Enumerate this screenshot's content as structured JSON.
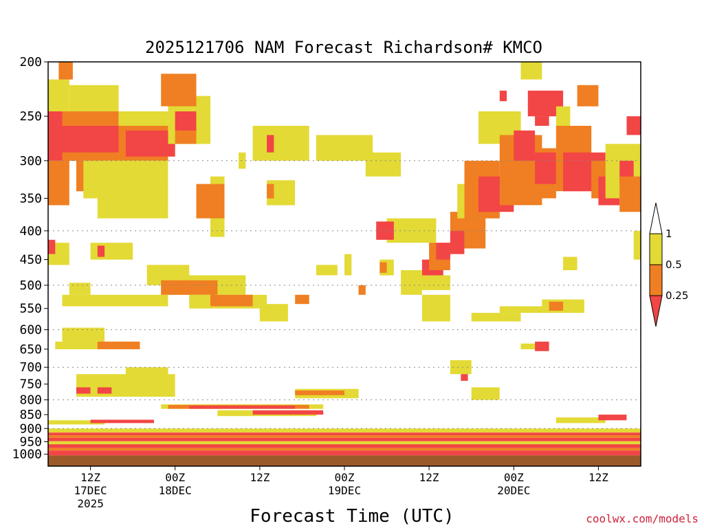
{
  "chart_data": {
    "type": "heatmap",
    "title": "2025121706 NAM Forecast Richardson# KMCO",
    "xlabel": "Forecast Time (UTC)",
    "ylabel": "",
    "credit": "coolwx.com/models",
    "y_axis": {
      "scale": "log",
      "reversed": true,
      "range": [
        200,
        1050
      ],
      "ticks": [
        200,
        250,
        300,
        350,
        400,
        450,
        500,
        550,
        600,
        650,
        700,
        750,
        800,
        850,
        900,
        950,
        1000
      ],
      "tick_labels": [
        "200",
        "250",
        "300",
        "350",
        "400",
        "450",
        "500",
        "550",
        "600",
        "650",
        "700",
        "750",
        "800",
        "850",
        "900",
        "950",
        "1000"
      ],
      "gridlines_at": [
        300,
        400,
        500,
        600,
        700,
        800,
        900
      ]
    },
    "x_axis": {
      "range_hours": [
        6,
        90
      ],
      "ticks_hours": [
        12,
        24,
        36,
        48,
        60,
        72,
        84
      ],
      "tick_labels": [
        [
          "12Z",
          "17DEC",
          "2025"
        ],
        [
          "00Z",
          "18DEC"
        ],
        [
          "12Z"
        ],
        [
          "00Z",
          "19DEC"
        ],
        [
          "12Z"
        ],
        [
          "00Z",
          "20DEC"
        ],
        [
          "12Z"
        ]
      ]
    },
    "legend": {
      "placement": "right",
      "labels": [
        "1",
        "0.5",
        "0.25"
      ],
      "colors": {
        "above": "#ffffff",
        "mid_high": "#e3da35",
        "mid_low": "#ef7f22",
        "low": "#f24545"
      }
    },
    "categories": {
      "yellow": "0.5-1",
      "orange": "0.25-0.5",
      "red": "<0.25"
    },
    "colors": {
      "yellow": "#e3da35",
      "orange": "#ef7f22",
      "red": "#f24545",
      "ground": "#9b5a2a"
    },
    "regions": [
      {
        "v": "yellow",
        "t": [
          6,
          9
        ],
        "p": [
          215,
          300
        ]
      },
      {
        "v": "orange",
        "t": [
          7.5,
          9.5
        ],
        "p": [
          200,
          215
        ]
      },
      {
        "v": "orange",
        "t": [
          6,
          9
        ],
        "p": [
          300,
          360
        ]
      },
      {
        "v": "red",
        "t": [
          6,
          11
        ],
        "p": [
          245,
          300
        ]
      },
      {
        "v": "yellow",
        "t": [
          9,
          16
        ],
        "p": [
          220,
          245
        ]
      },
      {
        "v": "orange",
        "t": [
          8,
          16
        ],
        "p": [
          245,
          300
        ]
      },
      {
        "v": "red",
        "t": [
          8,
          18
        ],
        "p": [
          260,
          290
        ]
      },
      {
        "v": "orange",
        "t": [
          10,
          14
        ],
        "p": [
          300,
          340
        ]
      },
      {
        "v": "yellow",
        "t": [
          11,
          16
        ],
        "p": [
          300,
          350
        ]
      },
      {
        "v": "yellow",
        "t": [
          16,
          23
        ],
        "p": [
          245,
          300
        ]
      },
      {
        "v": "orange",
        "t": [
          16,
          23
        ],
        "p": [
          260,
          300
        ]
      },
      {
        "v": "red",
        "t": [
          17,
          24
        ],
        "p": [
          265,
          295
        ]
      },
      {
        "v": "yellow",
        "t": [
          13,
          23
        ],
        "p": [
          300,
          380
        ]
      },
      {
        "v": "yellow",
        "t": [
          18,
          23
        ],
        "p": [
          330,
          370
        ]
      },
      {
        "v": "yellow",
        "t": [
          23,
          29
        ],
        "p": [
          230,
          280
        ]
      },
      {
        "v": "orange",
        "t": [
          24,
          27
        ],
        "p": [
          250,
          280
        ]
      },
      {
        "v": "red",
        "t": [
          24,
          27
        ],
        "p": [
          245,
          265
        ]
      },
      {
        "v": "yellow",
        "t": [
          29,
          31
        ],
        "p": [
          320,
          410
        ]
      },
      {
        "v": "orange",
        "t": [
          27,
          31
        ],
        "p": [
          330,
          380
        ]
      },
      {
        "v": "orange",
        "t": [
          22,
          27
        ],
        "p": [
          210,
          240
        ]
      },
      {
        "v": "yellow",
        "t": [
          35,
          43
        ],
        "p": [
          260,
          300
        ]
      },
      {
        "v": "red",
        "t": [
          37,
          38
        ],
        "p": [
          270,
          290
        ]
      },
      {
        "v": "yellow",
        "t": [
          44,
          52
        ],
        "p": [
          270,
          300
        ]
      },
      {
        "v": "yellow",
        "t": [
          51,
          56
        ],
        "p": [
          290,
          320
        ]
      },
      {
        "v": "yellow",
        "t": [
          37,
          41
        ],
        "p": [
          325,
          360
        ]
      },
      {
        "v": "orange",
        "t": [
          37,
          38
        ],
        "p": [
          330,
          350
        ]
      },
      {
        "v": "yellow",
        "t": [
          33,
          34
        ],
        "p": [
          290,
          310
        ]
      },
      {
        "v": "yellow",
        "t": [
          54,
          61
        ],
        "p": [
          380,
          420
        ]
      },
      {
        "v": "red",
        "t": [
          52.5,
          55
        ],
        "p": [
          385,
          415
        ]
      },
      {
        "v": "yellow",
        "t": [
          6,
          9
        ],
        "p": [
          420,
          460
        ]
      },
      {
        "v": "red",
        "t": [
          6,
          7
        ],
        "p": [
          415,
          440
        ]
      },
      {
        "v": "yellow",
        "t": [
          12,
          18
        ],
        "p": [
          420,
          450
        ]
      },
      {
        "v": "red",
        "t": [
          13,
          14
        ],
        "p": [
          425,
          445
        ]
      },
      {
        "v": "yellow",
        "t": [
          20,
          26
        ],
        "p": [
          460,
          500
        ]
      },
      {
        "v": "yellow",
        "t": [
          22,
          34
        ],
        "p": [
          480,
          520
        ]
      },
      {
        "v": "orange",
        "t": [
          22,
          30
        ],
        "p": [
          490,
          520
        ]
      },
      {
        "v": "yellow",
        "t": [
          8,
          23
        ],
        "p": [
          520,
          545
        ]
      },
      {
        "v": "yellow",
        "t": [
          9,
          12
        ],
        "p": [
          495,
          520
        ]
      },
      {
        "v": "yellow",
        "t": [
          26,
          37
        ],
        "p": [
          520,
          550
        ]
      },
      {
        "v": "orange",
        "t": [
          29,
          35
        ],
        "p": [
          520,
          545
        ]
      },
      {
        "v": "red",
        "t": [
          36,
          37
        ],
        "p": [
          550,
          570
        ]
      },
      {
        "v": "yellow",
        "t": [
          36,
          40
        ],
        "p": [
          540,
          580
        ]
      },
      {
        "v": "orange",
        "t": [
          41,
          43
        ],
        "p": [
          520,
          540
        ]
      },
      {
        "v": "yellow",
        "t": [
          44,
          47
        ],
        "p": [
          460,
          480
        ]
      },
      {
        "v": "yellow",
        "t": [
          48,
          49
        ],
        "p": [
          440,
          480
        ]
      },
      {
        "v": "orange",
        "t": [
          50,
          51
        ],
        "p": [
          500,
          520
        ]
      },
      {
        "v": "yellow",
        "t": [
          53,
          55
        ],
        "p": [
          450,
          480
        ]
      },
      {
        "v": "orange",
        "t": [
          53,
          54
        ],
        "p": [
          455,
          475
        ]
      },
      {
        "v": "yellow",
        "t": [
          56,
          59
        ],
        "p": [
          470,
          520
        ]
      },
      {
        "v": "yellow",
        "t": [
          58,
          63
        ],
        "p": [
          480,
          510
        ]
      },
      {
        "v": "yellow",
        "t": [
          59,
          63
        ],
        "p": [
          520,
          580
        ]
      },
      {
        "v": "red",
        "t": [
          59,
          62
        ],
        "p": [
          450,
          480
        ]
      },
      {
        "v": "orange",
        "t": [
          60,
          63
        ],
        "p": [
          420,
          470
        ]
      },
      {
        "v": "red",
        "t": [
          61,
          63
        ],
        "p": [
          420,
          450
        ]
      },
      {
        "v": "orange",
        "t": [
          63,
          68
        ],
        "p": [
          370,
          430
        ]
      },
      {
        "v": "red",
        "t": [
          63,
          65
        ],
        "p": [
          400,
          440
        ]
      },
      {
        "v": "yellow",
        "t": [
          64,
          70
        ],
        "p": [
          330,
          380
        ]
      },
      {
        "v": "orange",
        "t": [
          65,
          70
        ],
        "p": [
          300,
          380
        ]
      },
      {
        "v": "red",
        "t": [
          67,
          72
        ],
        "p": [
          320,
          370
        ]
      },
      {
        "v": "yellow",
        "t": [
          67,
          73
        ],
        "p": [
          245,
          280
        ]
      },
      {
        "v": "orange",
        "t": [
          70,
          76
        ],
        "p": [
          270,
          360
        ]
      },
      {
        "v": "red",
        "t": [
          72,
          75
        ],
        "p": [
          265,
          300
        ]
      },
      {
        "v": "yellow",
        "t": [
          73,
          76
        ],
        "p": [
          200,
          215
        ]
      },
      {
        "v": "red",
        "t": [
          70,
          71
        ],
        "p": [
          225,
          235
        ]
      },
      {
        "v": "red",
        "t": [
          74,
          79
        ],
        "p": [
          225,
          250
        ]
      },
      {
        "v": "red",
        "t": [
          75,
          77
        ],
        "p": [
          250,
          260
        ]
      },
      {
        "v": "orange",
        "t": [
          75,
          78
        ],
        "p": [
          285,
          350
        ]
      },
      {
        "v": "red",
        "t": [
          75,
          78
        ],
        "p": [
          290,
          330
        ]
      },
      {
        "v": "yellow",
        "t": [
          78,
          80
        ],
        "p": [
          240,
          300
        ]
      },
      {
        "v": "orange",
        "t": [
          78,
          83
        ],
        "p": [
          260,
          340
        ]
      },
      {
        "v": "red",
        "t": [
          79,
          85
        ],
        "p": [
          290,
          340
        ]
      },
      {
        "v": "orange",
        "t": [
          81,
          84
        ],
        "p": [
          220,
          240
        ]
      },
      {
        "v": "orange",
        "t": [
          83,
          86
        ],
        "p": [
          300,
          350
        ]
      },
      {
        "v": "red",
        "t": [
          84,
          87
        ],
        "p": [
          320,
          360
        ]
      },
      {
        "v": "yellow",
        "t": [
          85,
          90
        ],
        "p": [
          280,
          350
        ]
      },
      {
        "v": "red",
        "t": [
          87,
          89
        ],
        "p": [
          300,
          330
        ]
      },
      {
        "v": "orange",
        "t": [
          87,
          90
        ],
        "p": [
          320,
          370
        ]
      },
      {
        "v": "red",
        "t": [
          88,
          90
        ],
        "p": [
          250,
          270
        ]
      },
      {
        "v": "yellow",
        "t": [
          89,
          90
        ],
        "p": [
          400,
          450
        ]
      },
      {
        "v": "yellow",
        "t": [
          79,
          81
        ],
        "p": [
          445,
          470
        ]
      },
      {
        "v": "yellow",
        "t": [
          66,
          73
        ],
        "p": [
          560,
          580
        ]
      },
      {
        "v": "yellow",
        "t": [
          70,
          77
        ],
        "p": [
          545,
          560
        ]
      },
      {
        "v": "yellow",
        "t": [
          76,
          82
        ],
        "p": [
          530,
          560
        ]
      },
      {
        "v": "orange",
        "t": [
          77,
          79
        ],
        "p": [
          535,
          555
        ]
      },
      {
        "v": "yellow",
        "t": [
          8,
          14
        ],
        "p": [
          595,
          630
        ]
      },
      {
        "v": "yellow",
        "t": [
          7,
          19
        ],
        "p": [
          630,
          650
        ]
      },
      {
        "v": "orange",
        "t": [
          13,
          19
        ],
        "p": [
          630,
          650
        ]
      },
      {
        "v": "yellow",
        "t": [
          10,
          24
        ],
        "p": [
          720,
          790
        ]
      },
      {
        "v": "yellow",
        "t": [
          17,
          23
        ],
        "p": [
          700,
          730
        ]
      },
      {
        "v": "red",
        "t": [
          10,
          12
        ],
        "p": [
          760,
          780
        ]
      },
      {
        "v": "red",
        "t": [
          13,
          15
        ],
        "p": [
          760,
          780
        ]
      },
      {
        "v": "yellow",
        "t": [
          73,
          75
        ],
        "p": [
          635,
          650
        ]
      },
      {
        "v": "red",
        "t": [
          75,
          77
        ],
        "p": [
          630,
          655
        ]
      },
      {
        "v": "yellow",
        "t": [
          63,
          66
        ],
        "p": [
          680,
          720
        ]
      },
      {
        "v": "red",
        "t": [
          64.5,
          65.5
        ],
        "p": [
          720,
          740
        ]
      },
      {
        "v": "yellow",
        "t": [
          66,
          70
        ],
        "p": [
          760,
          800
        ]
      },
      {
        "v": "yellow",
        "t": [
          41,
          50
        ],
        "p": [
          765,
          795
        ]
      },
      {
        "v": "orange",
        "t": [
          41,
          48
        ],
        "p": [
          770,
          785
        ]
      },
      {
        "v": "yellow",
        "t": [
          22,
          45
        ],
        "p": [
          815,
          830
        ]
      },
      {
        "v": "orange",
        "t": [
          23,
          43
        ],
        "p": [
          817,
          830
        ]
      },
      {
        "v": "red",
        "t": [
          26,
          41
        ],
        "p": [
          820,
          830
        ]
      },
      {
        "v": "yellow",
        "t": [
          30,
          44
        ],
        "p": [
          835,
          855
        ]
      },
      {
        "v": "red",
        "t": [
          35,
          45
        ],
        "p": [
          835,
          850
        ]
      },
      {
        "v": "yellow",
        "t": [
          78,
          85
        ],
        "p": [
          860,
          880
        ]
      },
      {
        "v": "red",
        "t": [
          84,
          88
        ],
        "p": [
          850,
          870
        ]
      },
      {
        "v": "yellow",
        "t": [
          6,
          14
        ],
        "p": [
          870,
          885
        ]
      },
      {
        "v": "red",
        "t": [
          12,
          21
        ],
        "p": [
          868,
          880
        ]
      },
      {
        "v": "yellow",
        "t": [
          6,
          90
        ],
        "p": [
          900,
          915
        ]
      },
      {
        "v": "red",
        "t": [
          6,
          90
        ],
        "p": [
          915,
          925
        ]
      },
      {
        "v": "orange",
        "t": [
          6,
          90
        ],
        "p": [
          925,
          935
        ]
      },
      {
        "v": "red",
        "t": [
          6,
          90
        ],
        "p": [
          935,
          948
        ]
      },
      {
        "v": "yellow",
        "t": [
          6,
          90
        ],
        "p": [
          948,
          960
        ]
      },
      {
        "v": "red",
        "t": [
          6,
          90
        ],
        "p": [
          960,
          975
        ]
      },
      {
        "v": "orange",
        "t": [
          6,
          90
        ],
        "p": [
          975,
          985
        ]
      },
      {
        "v": "red",
        "t": [
          6,
          90
        ],
        "p": [
          985,
          1005
        ]
      }
    ]
  }
}
